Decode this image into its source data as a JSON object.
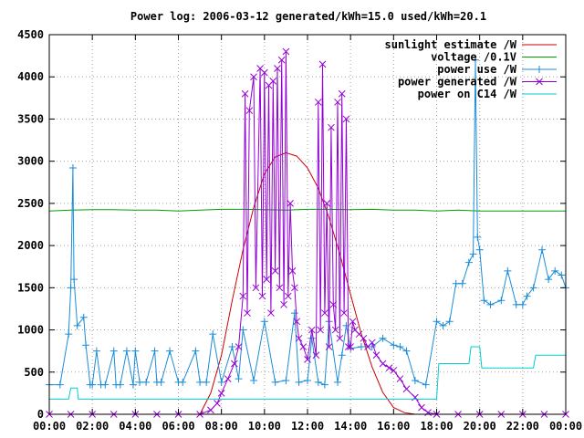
{
  "chart_data": {
    "type": "line",
    "title": "Power log: 2006-03-12 generated/kWh=15.0 used/kWh=20.1",
    "xlabel": "",
    "ylabel": "",
    "xlim": [
      0,
      24
    ],
    "ylim": [
      0,
      4500
    ],
    "grid": true,
    "legend_position": "top-right",
    "x_tick_labels": [
      "00:00",
      "02:00",
      "04:00",
      "06:00",
      "08:00",
      "10:00",
      "12:00",
      "14:00",
      "16:00",
      "18:00",
      "20:00",
      "22:00",
      "00:00"
    ],
    "y_tick_labels": [
      "0",
      "500",
      "1000",
      "1500",
      "2000",
      "2500",
      "3000",
      "3500",
      "4000",
      "4500"
    ],
    "series": [
      {
        "name": "sunlight estimate /W",
        "color": "#cc0000",
        "marker": "none",
        "x": [
          7.0,
          7.5,
          8.0,
          8.5,
          9.0,
          9.5,
          10.0,
          10.5,
          11.0,
          11.5,
          12.0,
          12.5,
          13.0,
          13.5,
          14.0,
          14.5,
          15.0,
          15.5,
          16.0,
          16.5,
          17.0
        ],
        "y": [
          0,
          250,
          700,
          1350,
          1950,
          2450,
          2850,
          3050,
          3100,
          3060,
          2920,
          2680,
          2330,
          1900,
          1420,
          950,
          560,
          260,
          80,
          20,
          0
        ]
      },
      {
        "name": "voltage /0.1V",
        "color": "#00a000",
        "marker": "none",
        "x": [
          0,
          1,
          2,
          3,
          4,
          5,
          6,
          7,
          8,
          9,
          10,
          11,
          12,
          13,
          14,
          15,
          16,
          17,
          18,
          19,
          20,
          21,
          22,
          23,
          24
        ],
        "y": [
          2410,
          2420,
          2425,
          2425,
          2420,
          2420,
          2410,
          2420,
          2430,
          2430,
          2425,
          2420,
          2430,
          2430,
          2425,
          2430,
          2420,
          2420,
          2410,
          2420,
          2410,
          2410,
          2410,
          2410,
          2410
        ]
      },
      {
        "name": "power use /W",
        "color": "#1a8cd8",
        "marker": "plus",
        "x": [
          0.0,
          0.5,
          0.9,
          1.0,
          1.1,
          1.15,
          1.3,
          1.6,
          1.7,
          1.9,
          2.0,
          2.2,
          2.4,
          2.6,
          3.0,
          3.1,
          3.3,
          3.6,
          3.9,
          4.0,
          4.2,
          4.5,
          4.9,
          5.0,
          5.2,
          5.6,
          6.0,
          6.2,
          6.8,
          7.0,
          7.3,
          7.6,
          8.0,
          8.5,
          8.8,
          9.0,
          9.5,
          10.0,
          10.5,
          11.0,
          11.4,
          11.6,
          12.0,
          12.2,
          12.5,
          12.8,
          13.0,
          13.4,
          13.6,
          13.8,
          14.0,
          14.5,
          15.0,
          15.5,
          16.0,
          16.3,
          16.6,
          17.0,
          17.5,
          18.0,
          18.3,
          18.6,
          18.9,
          19.2,
          19.5,
          19.7,
          19.8,
          19.9,
          20.0,
          20.2,
          20.5,
          21.0,
          21.3,
          21.7,
          22.0,
          22.2,
          22.5,
          22.9,
          23.2,
          23.5,
          23.8,
          24.0
        ],
        "y": [
          350,
          350,
          950,
          1500,
          2920,
          1600,
          1050,
          1150,
          820,
          350,
          350,
          750,
          350,
          350,
          750,
          350,
          350,
          750,
          350,
          750,
          380,
          380,
          750,
          380,
          380,
          750,
          380,
          380,
          750,
          380,
          380,
          950,
          380,
          800,
          420,
          1000,
          400,
          1100,
          380,
          400,
          1200,
          380,
          400,
          900,
          380,
          350,
          1100,
          380,
          700,
          1050,
          780,
          800,
          800,
          900,
          820,
          800,
          750,
          400,
          350,
          1100,
          1050,
          1100,
          1550,
          1550,
          1800,
          1900,
          4200,
          2100,
          1950,
          1350,
          1300,
          1350,
          1700,
          1300,
          1300,
          1400,
          1500,
          1950,
          1600,
          1700,
          1650,
          1500
        ]
      },
      {
        "name": "power generated /W",
        "color": "#9400d3",
        "marker": "cross",
        "x": [
          0,
          1,
          2,
          3,
          4,
          5,
          6,
          7,
          7.5,
          7.8,
          8.0,
          8.3,
          8.6,
          8.8,
          9.0,
          9.1,
          9.2,
          9.3,
          9.5,
          9.6,
          9.8,
          9.9,
          10.0,
          10.1,
          10.2,
          10.3,
          10.4,
          10.5,
          10.6,
          10.7,
          10.8,
          10.9,
          11.0,
          11.1,
          11.2,
          11.3,
          11.4,
          11.5,
          11.6,
          11.8,
          12.0,
          12.2,
          12.4,
          12.5,
          12.6,
          12.7,
          12.8,
          12.9,
          13.0,
          13.1,
          13.2,
          13.3,
          13.4,
          13.5,
          13.6,
          13.7,
          13.8,
          13.9,
          14.0,
          14.1,
          14.2,
          14.4,
          14.6,
          14.8,
          15.0,
          15.2,
          15.5,
          15.8,
          16.0,
          16.3,
          16.6,
          17.0,
          17.3,
          17.6,
          18.0,
          19.0,
          20.0,
          21.0,
          22.0,
          23.0,
          24.0
        ],
        "y": [
          0,
          0,
          0,
          0,
          0,
          0,
          0,
          0,
          50,
          130,
          250,
          420,
          600,
          800,
          1400,
          3800,
          1200,
          3600,
          4000,
          1500,
          4100,
          1400,
          4050,
          1600,
          3900,
          1200,
          3950,
          1700,
          4100,
          1500,
          4200,
          1300,
          4300,
          1400,
          2500,
          1700,
          1500,
          1100,
          900,
          800,
          650,
          1000,
          700,
          3700,
          1000,
          4150,
          1200,
          2500,
          800,
          3400,
          1300,
          1000,
          3700,
          900,
          3800,
          1200,
          3500,
          800,
          800,
          1100,
          1000,
          950,
          900,
          800,
          850,
          700,
          600,
          550,
          520,
          420,
          300,
          200,
          80,
          20,
          0,
          0,
          0,
          0,
          0,
          0,
          0
        ]
      },
      {
        "name": "power on C14 /W",
        "color": "#00cccc",
        "marker": "none",
        "x": [
          0,
          0.9,
          1.0,
          1.3,
          1.35,
          2,
          4,
          6,
          8,
          10,
          12,
          14,
          16,
          17.0,
          17.5,
          17.6,
          18.0,
          18.1,
          19.5,
          19.6,
          20.0,
          20.1,
          22.5,
          22.6,
          24.0
        ],
        "y": [
          180,
          180,
          310,
          310,
          180,
          180,
          180,
          180,
          180,
          180,
          180,
          180,
          180,
          180,
          180,
          180,
          180,
          600,
          600,
          800,
          800,
          550,
          550,
          700,
          700
        ]
      }
    ]
  }
}
